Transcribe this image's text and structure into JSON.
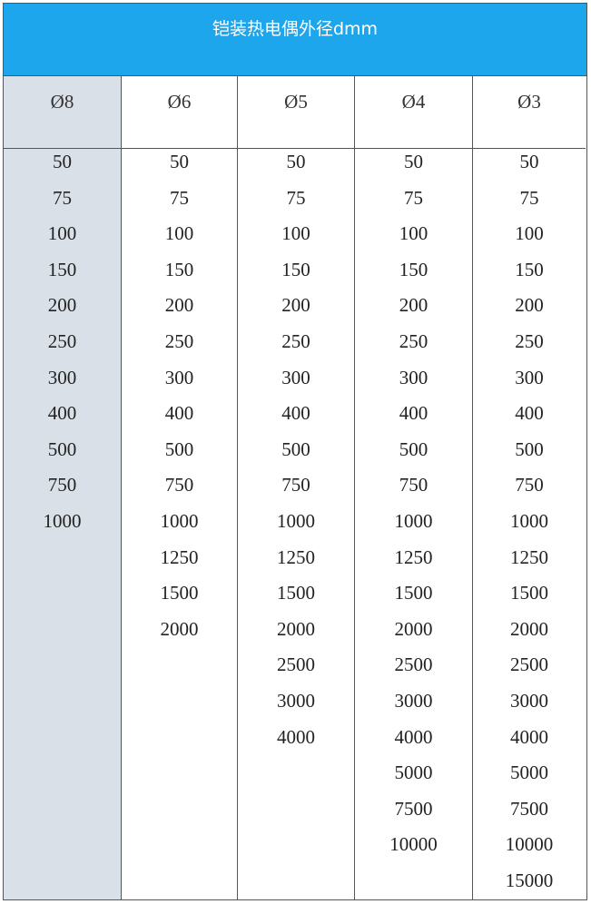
{
  "title": "铠装热电偶外径dmm",
  "columns": [
    {
      "header": "Ø8",
      "values": [
        "50",
        "75",
        "100",
        "150",
        "200",
        "250",
        "300",
        "400",
        "500",
        "750",
        "1000"
      ]
    },
    {
      "header": "Ø6",
      "values": [
        "50",
        "75",
        "100",
        "150",
        "200",
        "250",
        "300",
        "400",
        "500",
        "750",
        "1000",
        "1250",
        "1500",
        "2000"
      ]
    },
    {
      "header": "Ø5",
      "values": [
        "50",
        "75",
        "100",
        "150",
        "200",
        "250",
        "300",
        "400",
        "500",
        "750",
        "1000",
        "1250",
        "1500",
        "2000",
        "2500",
        "3000",
        "4000"
      ]
    },
    {
      "header": "Ø4",
      "values": [
        "50",
        "75",
        "100",
        "150",
        "200",
        "250",
        "300",
        "400",
        "500",
        "750",
        "1000",
        "1250",
        "1500",
        "2000",
        "2500",
        "3000",
        "4000",
        "5000",
        "7500",
        "10000"
      ]
    },
    {
      "header": "Ø3",
      "values": [
        "50",
        "75",
        "100",
        "150",
        "200",
        "250",
        "300",
        "400",
        "500",
        "750",
        "1000",
        "1250",
        "1500",
        "2000",
        "2500",
        "3000",
        "4000",
        "5000",
        "7500",
        "10000",
        "15000"
      ]
    }
  ],
  "colors": {
    "title_bg": "#1ea6ec",
    "first_col_bg": "#d9e0e7"
  }
}
